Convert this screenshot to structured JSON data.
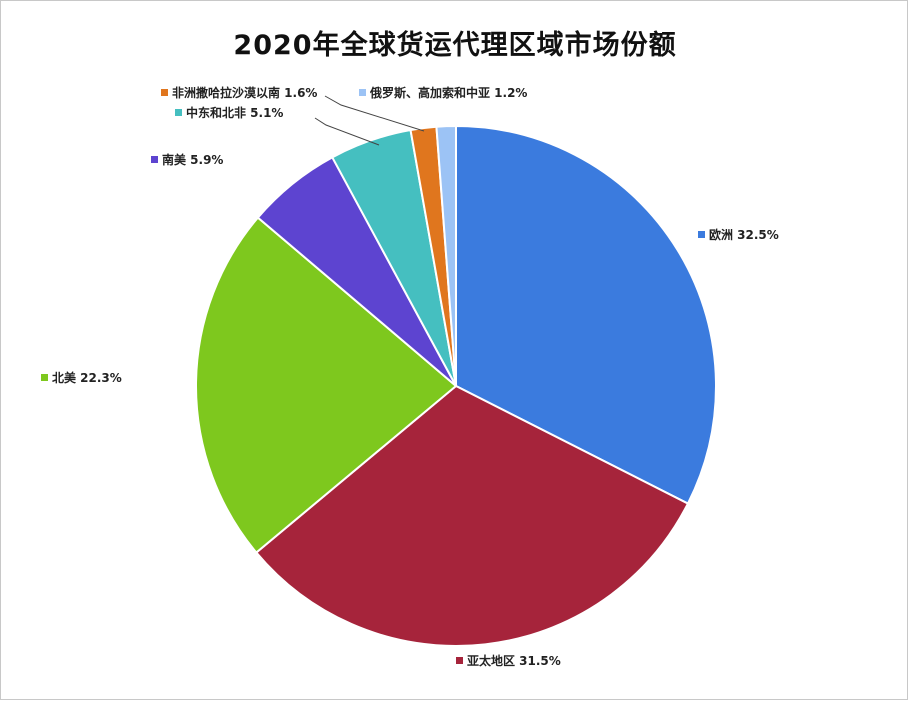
{
  "chart_data": {
    "type": "pie",
    "title": "2020年全球货运代理区域市场份额",
    "unit": "%",
    "slices": [
      {
        "label": "欧洲",
        "value": 32.5,
        "text": "欧洲 32.5%",
        "color": "#3B7BDE"
      },
      {
        "label": "亚太地区",
        "value": 31.5,
        "text": "亚太地区 31.5%",
        "color": "#A6243B"
      },
      {
        "label": "北美",
        "value": 22.3,
        "text": "北美 22.3%",
        "color": "#7EC81E"
      },
      {
        "label": "南美",
        "value": 5.9,
        "text": "南美 5.9%",
        "color": "#5D44D0"
      },
      {
        "label": "中东和北非",
        "value": 5.1,
        "text": "中东和北非 5.1%",
        "color": "#45BFC0"
      },
      {
        "label": "非洲撒哈拉沙漠以南",
        "value": 1.6,
        "text": "非洲撒哈拉沙漠以南 1.6%",
        "color": "#E0761E"
      },
      {
        "label": "俄罗斯、高加索和中亚",
        "value": 1.2,
        "text": "俄罗斯、高加索和中亚 1.2%",
        "color": "#9CC3F5"
      }
    ],
    "legend": "data labels beside slices"
  }
}
